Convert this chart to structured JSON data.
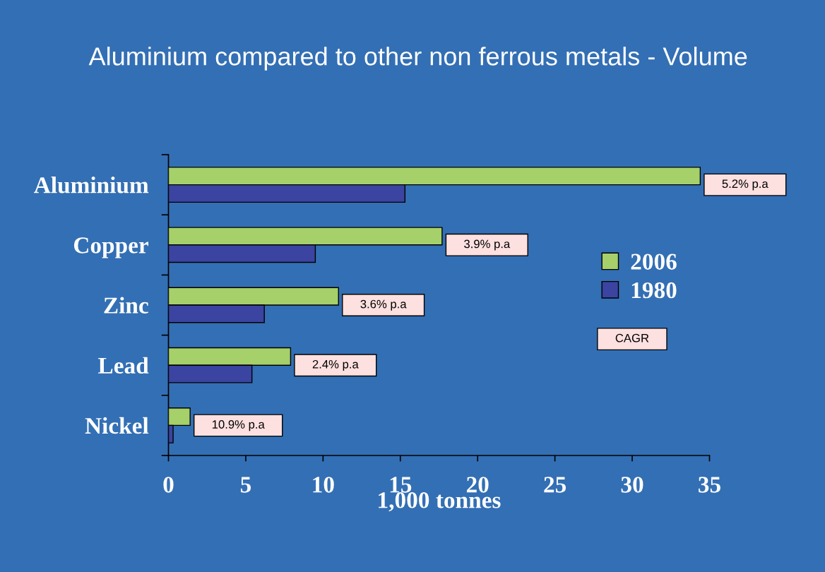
{
  "chart_data": {
    "type": "bar",
    "orientation": "horizontal",
    "title": "Aluminium compared to other non ferrous metals - Volume",
    "xlabel": "1,000 tonnes",
    "categories": [
      "Aluminium",
      "Copper",
      "Zinc",
      "Lead",
      "Nickel"
    ],
    "series": [
      {
        "name": "2006",
        "color": "#a6d06a",
        "values": [
          34.4,
          17.7,
          11.0,
          7.9,
          1.4
        ]
      },
      {
        "name": "1980",
        "color": "#3b44a0",
        "values": [
          15.3,
          9.5,
          6.2,
          5.4,
          0.3
        ]
      }
    ],
    "xlim": [
      0,
      35
    ],
    "xticks": [
      0,
      5,
      10,
      15,
      20,
      25,
      30,
      35
    ],
    "legend": "right",
    "annotations": [
      {
        "text": "5.2% p.a",
        "x": 34.4,
        "y": "Aluminium"
      },
      {
        "text": "3.9% p.a",
        "x": 17.7,
        "y": "Copper"
      },
      {
        "text": "3.6% p.a",
        "x": 11.0,
        "y": "Zinc"
      },
      {
        "text": "2.4% p.a",
        "x": 7.9,
        "y": "Lead"
      },
      {
        "text": "10.9% p.a",
        "x": 1.4,
        "y": "Nickel"
      },
      "CAGR"
    ]
  }
}
